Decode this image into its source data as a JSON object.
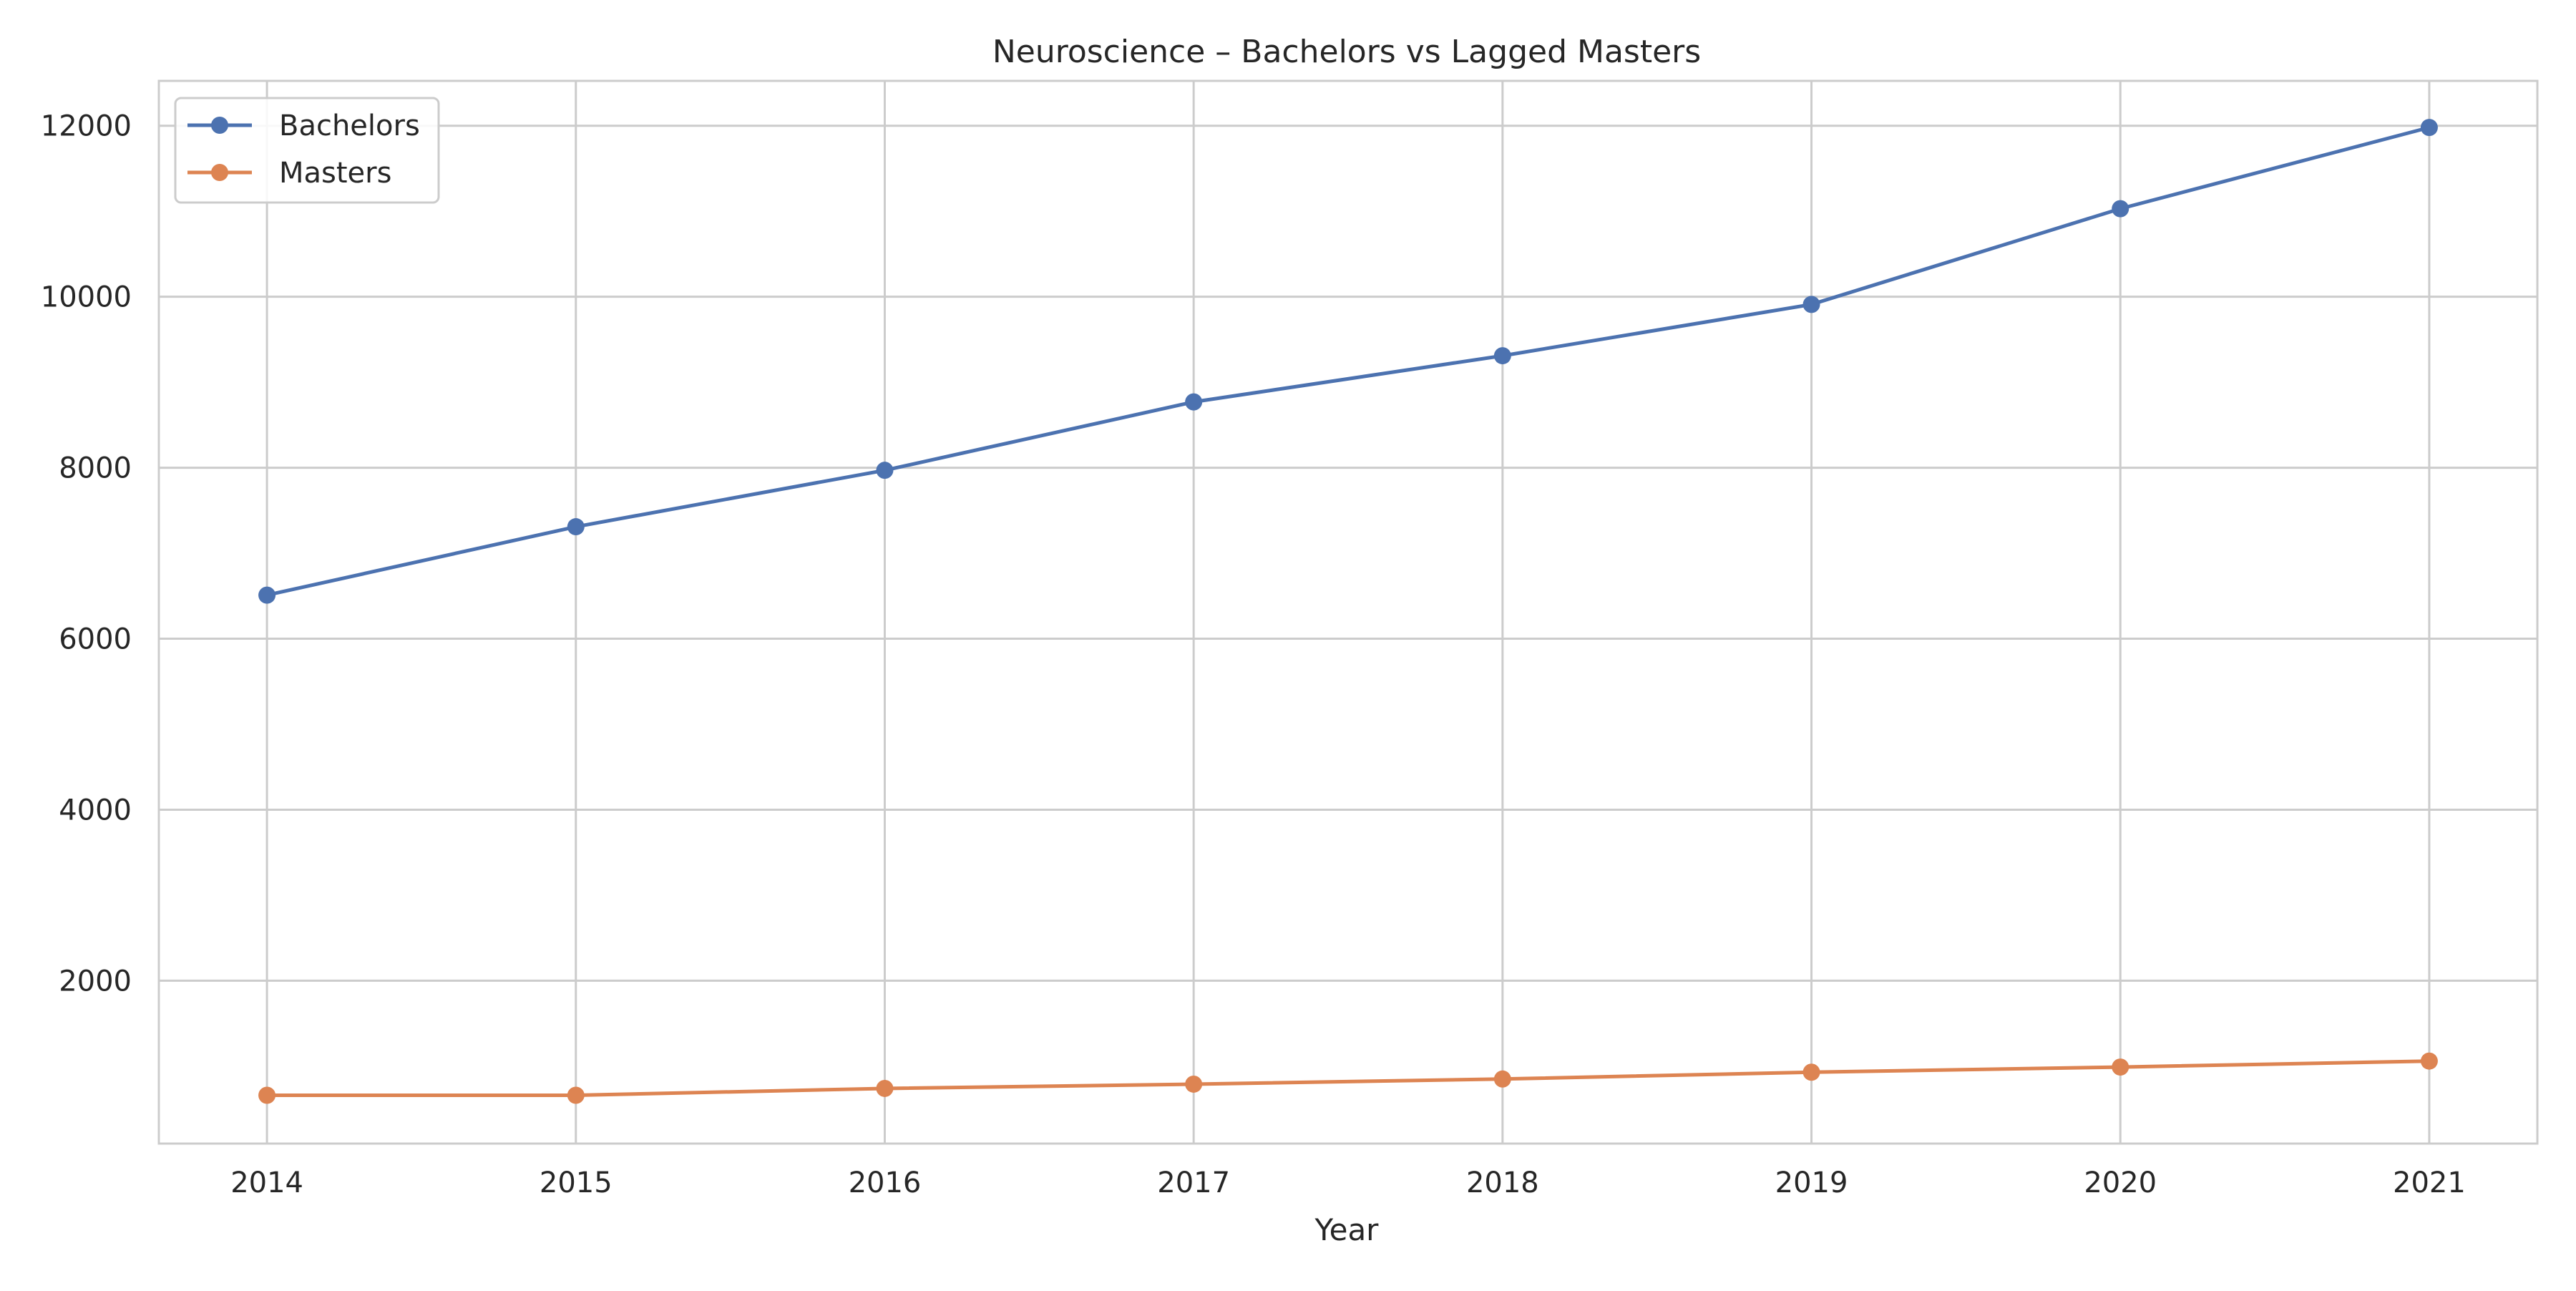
{
  "chart_data": {
    "type": "line",
    "title": "Neuroscience – Bachelors vs Lagged Masters",
    "xlabel": "Year",
    "ylabel": "",
    "x": [
      2014,
      2015,
      2016,
      2017,
      2018,
      2019,
      2020,
      2021
    ],
    "x_tick_labels": [
      "2014",
      "2015",
      "2016",
      "2017",
      "2018",
      "2019",
      "2020",
      "2021"
    ],
    "y_ticks": [
      2000,
      4000,
      6000,
      8000,
      10000,
      12000
    ],
    "y_tick_labels": [
      "2000",
      "4000",
      "6000",
      "8000",
      "10000",
      "12000"
    ],
    "xlim": [
      2013.65,
      2021.35
    ],
    "ylim": [
      95,
      12525
    ],
    "grid": true,
    "legend_position": "top-left",
    "series": [
      {
        "name": "Bachelors",
        "color": "#4c72b0",
        "marker": "circle",
        "values": [
          6510,
          7310,
          7970,
          8770,
          9310,
          9910,
          11030,
          11980
        ]
      },
      {
        "name": "Masters",
        "color": "#dd8452",
        "marker": "circle",
        "values": [
          660,
          660,
          740,
          790,
          850,
          930,
          990,
          1060
        ]
      }
    ]
  }
}
